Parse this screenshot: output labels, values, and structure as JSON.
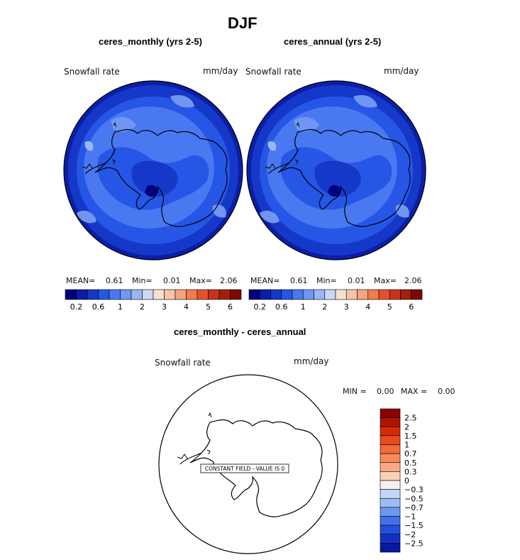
{
  "figure_title": "DJF",
  "chart_data": [
    {
      "type": "heatmap",
      "title": "ceres_monthly (yrs 2-5)",
      "variable": "Snowfall rate",
      "units": "mm/day",
      "projection": "south polar stereographic",
      "stats": {
        "mean_label": "MEAN=",
        "mean": "0.61",
        "min_label": "Min=",
        "min": "0.01",
        "max_label": "Max=",
        "max": "2.06"
      },
      "colorbar_ticks": [
        "0.2",
        "0.6",
        "1",
        "2",
        "3",
        "4",
        "5",
        "6"
      ],
      "colorbar_colors": [
        "#00007f",
        "#0b1ea8",
        "#1638c8",
        "#2656e6",
        "#4a78f0",
        "#7096f2",
        "#9ab6f4",
        "#c8d8f6",
        "#f6e0d0",
        "#f6c4a6",
        "#f4a47c",
        "#f07c52",
        "#e4522c",
        "#c8341a",
        "#a41e0c",
        "#7c0a02"
      ]
    },
    {
      "type": "heatmap",
      "title": "ceres_annual (yrs 2-5)",
      "variable": "Snowfall rate",
      "units": "mm/day",
      "projection": "south polar stereographic",
      "stats": {
        "mean_label": "MEAN=",
        "mean": "0.61",
        "min_label": "Min=",
        "min": "0.01",
        "max_label": "Max=",
        "max": "2.06"
      },
      "colorbar_ticks": [
        "0.2",
        "0.6",
        "1",
        "2",
        "3",
        "4",
        "5",
        "6"
      ],
      "colorbar_colors": [
        "#00007f",
        "#0b1ea8",
        "#1638c8",
        "#2656e6",
        "#4a78f0",
        "#7096f2",
        "#9ab6f4",
        "#c8d8f6",
        "#f6e0d0",
        "#f6c4a6",
        "#f4a47c",
        "#f07c52",
        "#e4522c",
        "#c8341a",
        "#a41e0c",
        "#7c0a02"
      ]
    },
    {
      "type": "heatmap",
      "title": "ceres_monthly - ceres_annual",
      "variable": "Snowfall rate",
      "units": "mm/day",
      "projection": "south polar stereographic",
      "stats": {
        "min_label": "MIN =",
        "min": "0.00",
        "max_label": "MAX =",
        "max": "0.00"
      },
      "annotation": "CONSTANT FIELD - VALUE IS 0",
      "colorbar_ticks": [
        "2.5",
        "2",
        "1.5",
        "1",
        "0.7",
        "0.5",
        "0.3",
        "0",
        "−0.3",
        "−0.5",
        "−0.7",
        "−1",
        "−1.5",
        "−2",
        "−2.5"
      ],
      "colorbar_colors": [
        "#8c0000",
        "#b01400",
        "#d42a08",
        "#ec4a1c",
        "#f46a38",
        "#f88a5a",
        "#faa886",
        "#fcd0b8",
        "#f4f0ee",
        "#c4d8f6",
        "#9cbcf4",
        "#6c98f0",
        "#4270ea",
        "#244ee0",
        "#1430c4",
        "#081aa0"
      ]
    }
  ]
}
